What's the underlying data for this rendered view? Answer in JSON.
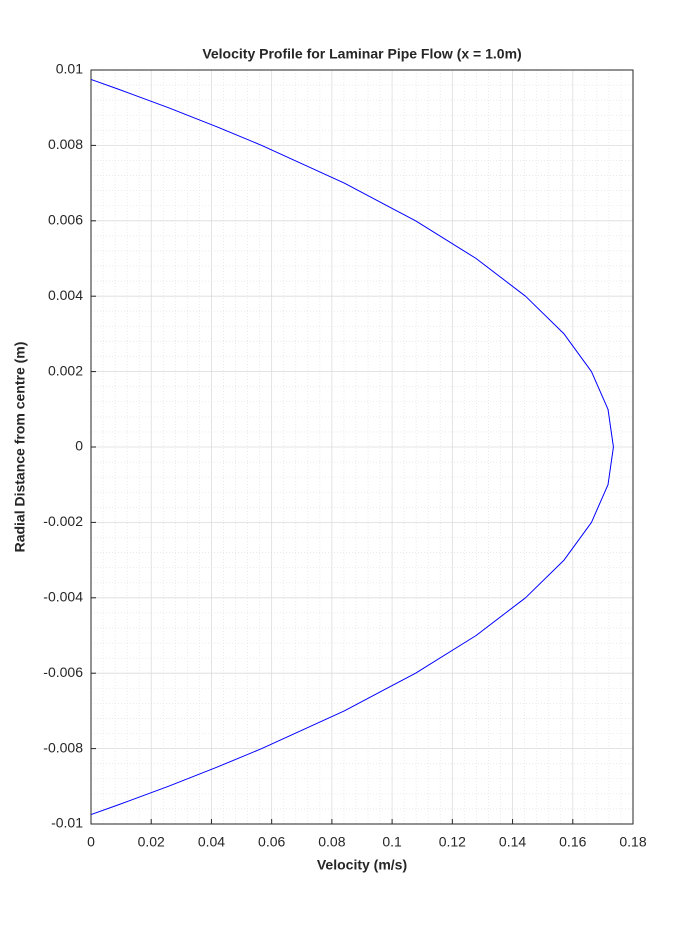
{
  "chart_data": {
    "type": "line",
    "title": "Velocity Profile for Laminar Pipe Flow (x = 1.0m)",
    "x_label": "Velocity (m/s)",
    "y_label": "Radial Distance from centre (m)",
    "x": [
      0,
      0.0088,
      0.0257,
      0.0416,
      0.0567,
      0.0841,
      0.1078,
      0.1279,
      0.1443,
      0.1571,
      0.1662,
      0.1717,
      0.1735,
      0.1717,
      0.1662,
      0.1571,
      0.1443,
      0.1279,
      0.1078,
      0.0841,
      0.0567,
      0.0416,
      0.0257,
      0.0088,
      0
    ],
    "series": [
      {
        "color": "#0000ff",
        "values": [
          -0.00975,
          -0.0095,
          -0.009,
          -0.0085,
          -0.008,
          -0.007,
          -0.006,
          -0.005,
          -0.004,
          -0.003,
          -0.002,
          -0.001,
          0,
          0.001,
          0.002,
          0.003,
          0.004,
          0.005,
          0.006,
          0.007,
          0.008,
          0.0085,
          0.009,
          0.0095,
          0.00975
        ]
      }
    ],
    "xlim": [
      0,
      0.18
    ],
    "xticks": [
      0,
      0.02,
      0.04,
      0.06,
      0.08,
      0.1,
      0.12,
      0.14,
      0.16,
      0.18
    ],
    "ylim": [
      -0.01,
      0.01
    ],
    "yticks": [
      -0.01,
      -0.008,
      -0.006,
      -0.004,
      -0.002,
      0,
      0.002,
      0.004,
      0.006,
      0.008,
      0.01
    ],
    "grid": true,
    "minor_grid": true
  }
}
